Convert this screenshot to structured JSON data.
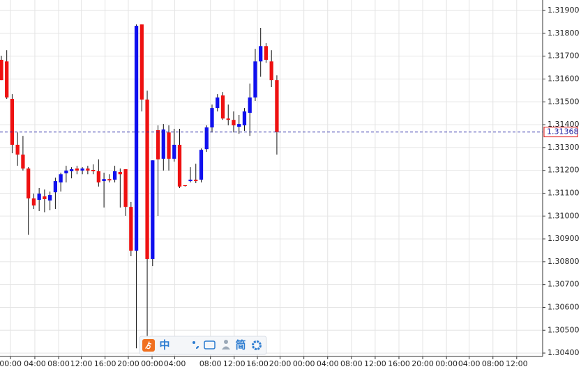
{
  "chart_data": {
    "type": "candlestick",
    "up_color": "#1010ee",
    "down_color": "#ee1111",
    "grid": true,
    "open": [
      1.31684,
      1.31677,
      1.31513,
      1.31312,
      1.31269,
      1.31208,
      1.31077,
      1.31071,
      1.31086,
      1.31068,
      1.31104,
      1.31147,
      1.31187,
      1.31196,
      1.31208,
      1.31199,
      1.31208,
      1.31202,
      1.31196,
      1.31153,
      1.31162,
      1.31159,
      1.31193,
      1.31205,
      1.3104,
      1.30848,
      1.31839,
      1.3151,
      1.30812,
      1.31376,
      1.31251,
      1.31366,
      1.31251,
      1.31312,
      1.31135,
      1.31153,
      1.31159,
      1.31159,
      1.31293,
      1.31388,
      1.31473,
      1.31528,
      1.31427,
      1.31421,
      1.31391,
      1.31397,
      1.31452,
      1.31519,
      1.31677,
      1.31744,
      1.31677,
      1.31595
    ],
    "high": [
      1.31702,
      1.31726,
      1.31534,
      1.31366,
      1.31351,
      1.31214,
      1.31098,
      1.31123,
      1.31116,
      1.31107,
      1.31168,
      1.3119,
      1.3122,
      1.31214,
      1.3122,
      1.31214,
      1.3122,
      1.31226,
      1.31248,
      1.3119,
      1.31183,
      1.3122,
      1.31208,
      1.31205,
      1.31062,
      1.31839,
      1.31839,
      1.31549,
      1.31244,
      1.31397,
      1.31403,
      1.31397,
      1.31382,
      1.31382,
      1.31135,
      1.31214,
      1.31229,
      1.31296,
      1.31397,
      1.31488,
      1.31534,
      1.31543,
      1.31488,
      1.31458,
      1.31443,
      1.31473,
      1.3158,
      1.31732,
      1.31824,
      1.31757,
      1.31726,
      1.31616
    ],
    "low": [
      1.31595,
      1.31513,
      1.31275,
      1.3122,
      1.31199,
      1.30918,
      1.31031,
      1.31022,
      1.31016,
      1.31025,
      1.31031,
      1.31107,
      1.31147,
      1.31165,
      1.31183,
      1.31183,
      1.31183,
      1.31183,
      1.31129,
      1.31037,
      1.31147,
      1.31147,
      1.31037,
      1.31001,
      1.30824,
      1.30421,
      1.31458,
      1.30467,
      1.30781,
      1.31001,
      1.31199,
      1.31199,
      1.31238,
      1.31123,
      1.31129,
      1.31147,
      1.31144,
      1.31147,
      1.31281,
      1.31366,
      1.31458,
      1.31421,
      1.31397,
      1.31366,
      1.3136,
      1.31373,
      1.31351,
      1.31504,
      1.3161,
      1.31671,
      1.31565,
      1.31269
    ],
    "close": [
      1.31595,
      1.31519,
      1.31312,
      1.31269,
      1.31208,
      1.31077,
      1.31046,
      1.31098,
      1.31074,
      1.31092,
      1.31153,
      1.31183,
      1.31199,
      1.31205,
      1.31199,
      1.31208,
      1.31199,
      1.31196,
      1.31147,
      1.31162,
      1.31156,
      1.31196,
      1.31183,
      1.3104,
      1.30848,
      1.31833,
      1.3151,
      1.30812,
      1.31244,
      1.31248,
      1.31379,
      1.31251,
      1.31312,
      1.31129,
      1.31132,
      1.31159,
      1.31153,
      1.3129,
      1.31388,
      1.31473,
      1.31519,
      1.31427,
      1.31421,
      1.31397,
      1.31403,
      1.31458,
      1.31519,
      1.31677,
      1.31744,
      1.31684,
      1.31595,
      1.31368
    ],
    "ylim": [
      1.30385,
      1.31946
    ],
    "yticks": [
      {
        "value": 1.319,
        "label": "1.31900"
      },
      {
        "value": 1.318,
        "label": "1.31800"
      },
      {
        "value": 1.317,
        "label": "1.31700"
      },
      {
        "value": 1.316,
        "label": "1.31600"
      },
      {
        "value": 1.315,
        "label": "1.31500"
      },
      {
        "value": 1.314,
        "label": "1.31400"
      },
      {
        "value": 1.313,
        "label": "1.31300"
      },
      {
        "value": 1.312,
        "label": "1.31200"
      },
      {
        "value": 1.311,
        "label": "1.31100"
      },
      {
        "value": 1.31,
        "label": "1.31000"
      },
      {
        "value": 1.309,
        "label": "1.30900"
      },
      {
        "value": 1.308,
        "label": "1.30800"
      },
      {
        "value": 1.307,
        "label": "1.30700"
      },
      {
        "value": 1.306,
        "label": "1.30600"
      },
      {
        "value": 1.305,
        "label": "1.30500"
      },
      {
        "value": 1.304,
        "label": "1.30400"
      }
    ],
    "xlim": [
      -0.25,
      100.2
    ],
    "xticks": [
      {
        "value": 1.7,
        "label": "00:00"
      },
      {
        "value": 6.2,
        "label": "04:00"
      },
      {
        "value": 10.6,
        "label": "08:00"
      },
      {
        "value": 14.8,
        "label": "12:00"
      },
      {
        "value": 19.2,
        "label": "16:00"
      },
      {
        "value": 23.5,
        "label": "20:00"
      },
      {
        "value": 27.9,
        "label": "00:00"
      },
      {
        "value": 32.1,
        "label": "04:00"
      },
      {
        "value": 38.7,
        "label": "08:00"
      },
      {
        "value": 43.1,
        "label": "12:00"
      },
      {
        "value": 47.4,
        "label": "16:00"
      },
      {
        "value": 51.6,
        "label": "20:00"
      },
      {
        "value": 56,
        "label": "00:00"
      },
      {
        "value": 60.4,
        "label": "04:00"
      },
      {
        "value": 64.8,
        "label": "08:00"
      },
      {
        "value": 69.2,
        "label": "12:00"
      },
      {
        "value": 73.6,
        "label": "16:00"
      },
      {
        "value": 78,
        "label": "20:00"
      },
      {
        "value": 82.4,
        "label": "00:00"
      },
      {
        "value": 86.6,
        "label": "04:00"
      },
      {
        "value": 91,
        "label": "08:00"
      },
      {
        "value": 95.4,
        "label": "12:00"
      }
    ],
    "last_price": {
      "value": 1.31368,
      "label": "1.31368"
    }
  },
  "toolbar": {
    "items": [
      "中",
      "简"
    ]
  }
}
